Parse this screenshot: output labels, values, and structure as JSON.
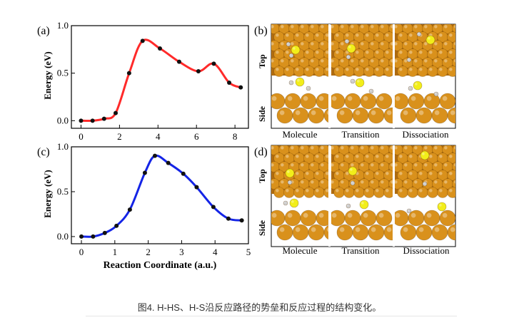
{
  "panels": {
    "a": {
      "label": "(a)"
    },
    "b": {
      "label": "(b)"
    },
    "c": {
      "label": "(c)"
    },
    "d": {
      "label": "(d)"
    }
  },
  "structure_labels": {
    "top": "Top",
    "side": "Side",
    "stages": [
      "Molecule",
      "Transition",
      "Dissociation"
    ]
  },
  "colors": {
    "curve_a": "#ff2a2a",
    "curve_c": "#1424e6",
    "points": "#111111",
    "surface_atom": "#d9911c",
    "sulfur_atom": "#f2ee1a",
    "hydrogen_atom": "#cfcfcf"
  },
  "caption": "图4. H-HS、H-S沿反应路径的势垒和反应过程的结构变化。",
  "chart_data": [
    {
      "type": "line",
      "panel": "a",
      "title": "",
      "xlabel": "",
      "ylabel": "Energy (eV)",
      "xlim": [
        -0.5,
        8.7
      ],
      "ylim": [
        -0.08,
        1.0
      ],
      "xticks": [
        0,
        2,
        4,
        6,
        8
      ],
      "yticks": [
        0.0,
        0.5,
        1.0
      ],
      "ytick_labels": [
        "0.0",
        "0.5",
        "1.0"
      ],
      "series": [
        {
          "x": [
            0,
            0.6,
            1.2,
            1.8,
            2.5,
            3.2,
            4.1,
            5.1,
            6.1,
            6.9,
            7.7,
            8.3
          ],
          "y": [
            0.0,
            0.0,
            0.02,
            0.08,
            0.5,
            0.84,
            0.76,
            0.62,
            0.52,
            0.6,
            0.4,
            0.35
          ]
        }
      ]
    },
    {
      "type": "line",
      "panel": "c",
      "title": "",
      "xlabel": "Reaction Coordinate (a.u.)",
      "ylabel": "Energy (eV)",
      "xlim": [
        -0.3,
        5.0
      ],
      "ylim": [
        -0.08,
        1.0
      ],
      "xticks": [
        0,
        1,
        2,
        3,
        4,
        5
      ],
      "yticks": [
        0.0,
        0.5,
        1.0
      ],
      "ytick_labels": [
        "0.0",
        "0.5",
        "1.0"
      ],
      "series": [
        {
          "x": [
            0,
            0.35,
            0.7,
            1.05,
            1.45,
            1.9,
            2.2,
            2.6,
            3.05,
            3.45,
            3.95,
            4.4,
            4.8
          ],
          "y": [
            0.0,
            0.0,
            0.04,
            0.12,
            0.3,
            0.71,
            0.9,
            0.82,
            0.7,
            0.55,
            0.33,
            0.2,
            0.18
          ]
        }
      ]
    }
  ]
}
